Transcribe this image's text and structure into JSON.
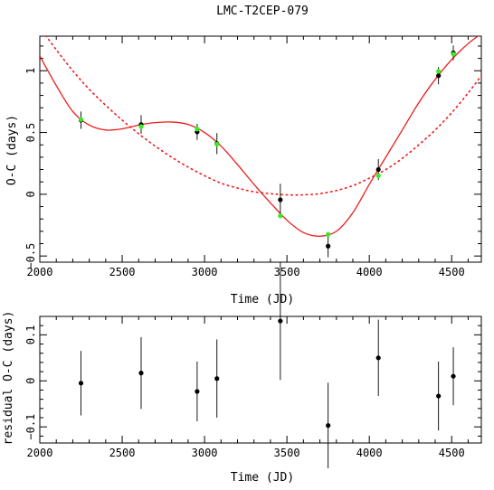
{
  "chart_data": [
    {
      "type": "scatter",
      "title": "LMC-T2CEP-079",
      "xlabel": "Time (JD)",
      "ylabel": "O-C (days)",
      "xlim": [
        2000,
        4680
      ],
      "ylim": [
        -0.55,
        1.28
      ],
      "x_ticks": [
        2000,
        2500,
        3000,
        3500,
        4000,
        4500
      ],
      "y_ticks": [
        -0.5,
        0,
        0.5,
        1
      ],
      "x_tick_labels": [
        "2000",
        "2500",
        "3000",
        "3500",
        "4000",
        "4500"
      ],
      "y_tick_labels": [
        "−0.5",
        "0",
        "0.5",
        "1"
      ],
      "grid": false,
      "series": [
        {
          "style": "points with error bars",
          "color": "#000000",
          "x": [
            2250,
            2615,
            2955,
            3075,
            3460,
            3750,
            4055,
            4420,
            4510
          ],
          "y": [
            0.6,
            0.565,
            0.505,
            0.41,
            -0.045,
            -0.42,
            0.2,
            0.96,
            1.145
          ],
          "err": [
            0.07,
            0.075,
            0.065,
            0.085,
            0.13,
            0.09,
            0.085,
            0.07,
            0.06
          ]
        },
        {
          "style": "model points",
          "color": "#33ee22",
          "x": [
            2250,
            2615,
            2955,
            3075,
            3460,
            3750,
            4055,
            4420,
            4510
          ],
          "y": [
            0.605,
            0.548,
            0.528,
            0.405,
            -0.175,
            -0.325,
            0.15,
            0.995,
            1.135
          ]
        },
        {
          "style": "solid curve",
          "color": "#ee1c1c",
          "x": [
            2000,
            2100,
            2200,
            2300,
            2400,
            2500,
            2600,
            2700,
            2800,
            2900,
            3000,
            3100,
            3200,
            3300,
            3400,
            3500,
            3600,
            3700,
            3800,
            3900,
            4000,
            4100,
            4200,
            4300,
            4400,
            4500,
            4600,
            4680
          ],
          "y": [
            1.12,
            0.88,
            0.67,
            0.56,
            0.52,
            0.53,
            0.56,
            0.58,
            0.585,
            0.565,
            0.5,
            0.39,
            0.24,
            0.08,
            -0.07,
            -0.21,
            -0.31,
            -0.34,
            -0.3,
            -0.15,
            0.08,
            0.3,
            0.52,
            0.74,
            0.93,
            1.09,
            1.22,
            1.3
          ]
        },
        {
          "style": "dotted curve",
          "color": "#ee1c1c",
          "x": [
            2000,
            2100,
            2200,
            2300,
            2400,
            2500,
            2600,
            2700,
            2800,
            2900,
            3000,
            3100,
            3200,
            3300,
            3400,
            3500,
            3600,
            3700,
            3800,
            3900,
            4000,
            4100,
            4200,
            4300,
            4400,
            4500,
            4600,
            4680
          ],
          "y": [
            1.35,
            1.17,
            1.0,
            0.85,
            0.72,
            0.6,
            0.49,
            0.39,
            0.3,
            0.22,
            0.15,
            0.09,
            0.05,
            0.02,
            0.005,
            -0.005,
            -0.005,
            0.005,
            0.03,
            0.07,
            0.13,
            0.2,
            0.29,
            0.4,
            0.52,
            0.66,
            0.82,
            0.96
          ]
        }
      ]
    },
    {
      "type": "scatter",
      "xlabel": "Time (JD)",
      "ylabel": "residual O-C (days)",
      "xlim": [
        2000,
        4680
      ],
      "ylim": [
        -0.135,
        0.14
      ],
      "x_ticks": [
        2000,
        2500,
        3000,
        3500,
        4000,
        4500
      ],
      "y_ticks": [
        -0.1,
        0,
        0.1
      ],
      "x_tick_labels": [
        "2000",
        "2500",
        "3000",
        "3500",
        "4000",
        "4500"
      ],
      "y_tick_labels": [
        "−0.1",
        "0",
        "0.1"
      ],
      "grid": false,
      "series": [
        {
          "style": "points with error bars",
          "color": "#000000",
          "x": [
            2250,
            2615,
            2955,
            3075,
            3460,
            3750,
            4055,
            4420,
            4510
          ],
          "y": [
            -0.005,
            0.017,
            -0.023,
            0.005,
            0.13,
            -0.097,
            0.05,
            -0.033,
            0.01
          ],
          "err": [
            0.07,
            0.078,
            0.065,
            0.085,
            0.128,
            0.093,
            0.083,
            0.075,
            0.063
          ]
        }
      ]
    }
  ]
}
